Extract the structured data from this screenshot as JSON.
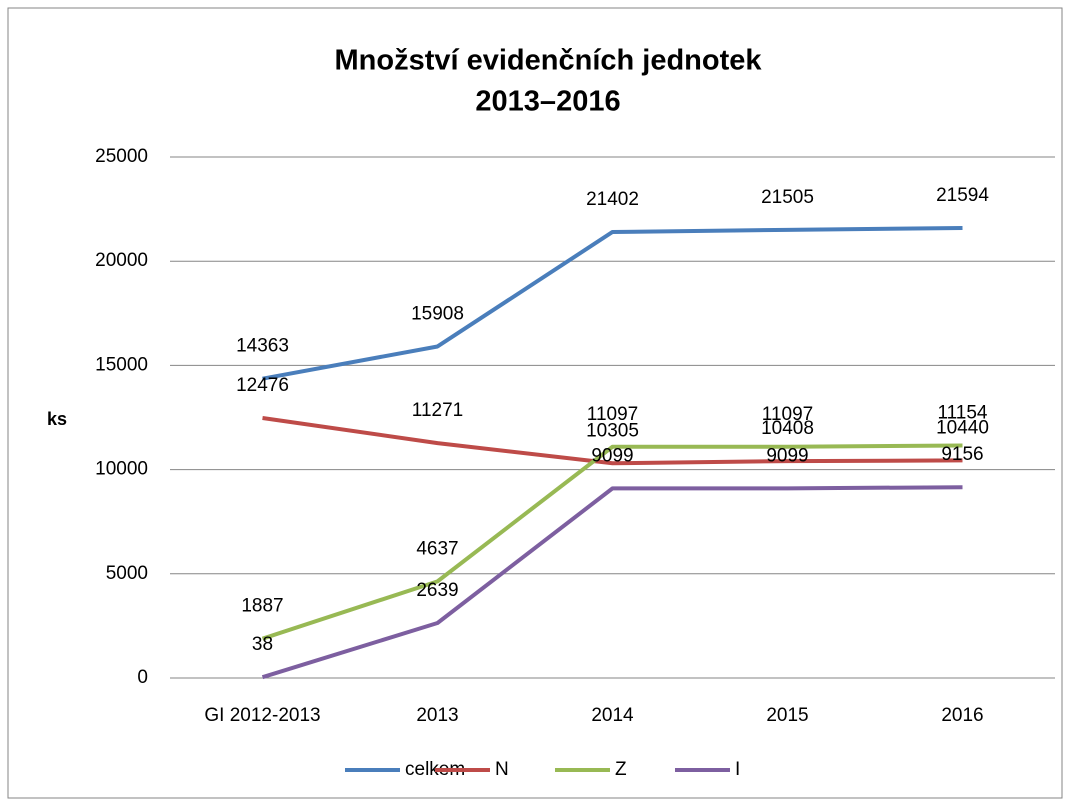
{
  "chart_data": {
    "type": "line",
    "title": [
      "Množství evidenčních jednotek",
      "2013–2016"
    ],
    "ylabel": "ks",
    "categories": [
      "GI 2012-2013",
      "2013",
      "2014",
      "2015",
      "2016"
    ],
    "series": [
      {
        "name": "celkem",
        "color": "#4a7ebb",
        "values": [
          14363,
          15908,
          21402,
          21505,
          21594
        ]
      },
      {
        "name": "N",
        "color": "#be4b48",
        "values": [
          12476,
          11271,
          10305,
          10408,
          10440
        ]
      },
      {
        "name": "Z",
        "color": "#98b954",
        "values": [
          1887,
          4637,
          11097,
          11097,
          11154
        ]
      },
      {
        "name": "I",
        "color": "#7d5fa0",
        "values": [
          38,
          2639,
          9099,
          9099,
          9156
        ]
      }
    ],
    "ylim": [
      0,
      25000
    ],
    "yticks": [
      0,
      5000,
      10000,
      15000,
      20000,
      25000
    ],
    "grid": true,
    "legend": "bottom"
  }
}
